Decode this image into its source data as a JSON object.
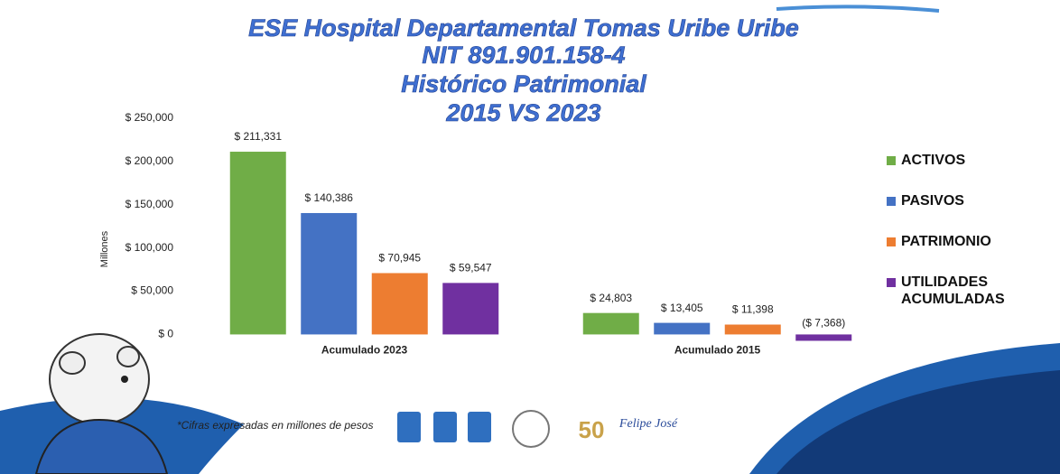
{
  "chart_data": {
    "type": "bar",
    "title": [
      "ESE Hospital Departamental Tomas Uribe Uribe",
      "NIT 891.901.158-4",
      "Histórico Patrimonial",
      "2015 VS 2023"
    ],
    "ylabel": "Millones",
    "footnote": "*Cifras expresadas en millones de pesos",
    "signature": "Felipe José",
    "categories": [
      "Acumulado 2023",
      "Acumulado 2015"
    ],
    "series": [
      {
        "name": "ACTIVOS",
        "color": "#70ad47",
        "values": [
          211331,
          24803
        ],
        "value_labels": [
          "$ 211,331",
          "$ 24,803"
        ]
      },
      {
        "name": "PASIVOS",
        "color": "#4472c4",
        "values": [
          140386,
          13405
        ],
        "value_labels": [
          "$ 140,386",
          "$ 13,405"
        ]
      },
      {
        "name": "PATRIMONIO",
        "color": "#ed7d31",
        "values": [
          70945,
          11398
        ],
        "value_labels": [
          "$ 70,945",
          "$ 11,398"
        ]
      },
      {
        "name": "UTILIDADES ACUMULADAS",
        "color": "#7030a0",
        "values": [
          59547,
          -7368
        ],
        "value_labels": [
          "$ 59,547",
          "($ 7,368)"
        ]
      }
    ],
    "ylim": [
      -10000,
      250000
    ],
    "yticks": [
      {
        "value": 0,
        "label": "$ 0"
      },
      {
        "value": 50000,
        "label": "$ 50,000"
      },
      {
        "value": 100000,
        "label": "$ 100,000"
      },
      {
        "value": 150000,
        "label": "$ 150,000"
      },
      {
        "value": 200000,
        "label": "$ 200,000"
      },
      {
        "value": 250000,
        "label": "$ 250,000"
      }
    ],
    "grid": false,
    "legend": "right"
  }
}
